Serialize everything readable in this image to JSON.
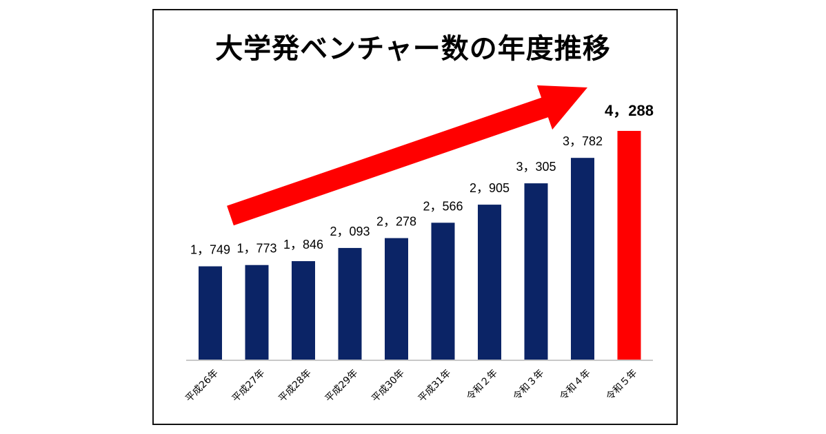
{
  "chart_data": {
    "type": "bar",
    "title": "大学発ベンチャー数の年度推移",
    "categories": [
      "平成26年",
      "平成27年",
      "平成28年",
      "平成29年",
      "平成30年",
      "平成31年",
      "令和２年",
      "令和３年",
      "令和４年",
      "令和５年"
    ],
    "values": [
      1749,
      1773,
      1846,
      2093,
      2278,
      2566,
      2905,
      3305,
      3782,
      4288
    ],
    "value_labels": [
      "1，749",
      "1，773",
      "1，846",
      "2，093",
      "2，278",
      "2，566",
      "2，905",
      "3，305",
      "3，782",
      "4，288"
    ],
    "xlabel": "",
    "ylabel": "",
    "ylim": [
      0,
      4700
    ],
    "highlight_index": 9,
    "colors": {
      "bar": "#0b2466",
      "highlight": "#ff0000",
      "arrow": "#ff0000",
      "axis": "#c8c8c8"
    },
    "annotations": [
      {
        "type": "trend-arrow",
        "direction": "up-right"
      }
    ]
  }
}
